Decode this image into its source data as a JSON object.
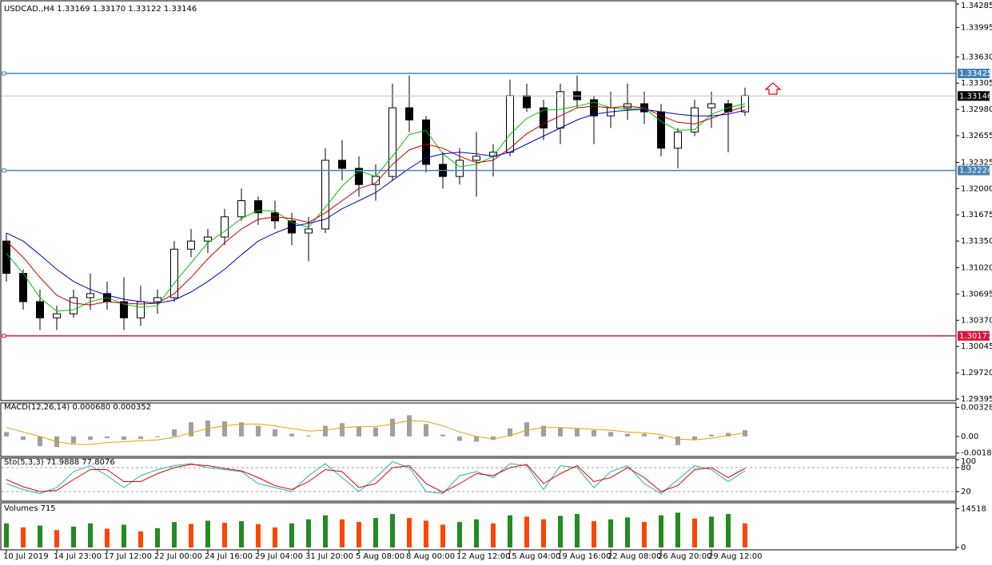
{
  "chart_data": [
    {
      "type": "candlestick",
      "title": "USDCAD.,H4  1.33169 1.33170 1.33122 1.33146",
      "categories": [
        "10 Jul 2019",
        null,
        null,
        "14 Jul 23:00",
        null,
        null,
        "17 Jul 12:00",
        null,
        null,
        "22 Jul 00:00",
        null,
        null,
        "24 Jul 16:00",
        null,
        null,
        "29 Jul 04:00",
        null,
        null,
        "31 Jul 20:00",
        null,
        null,
        "5 Aug 08:00",
        null,
        null,
        "8 Aug 00:00",
        null,
        null,
        "12 Aug 12:00",
        null,
        null,
        "15 Aug 04:00",
        null,
        null,
        "19 Aug 16:00",
        null,
        null,
        "22 Aug 08:00",
        null,
        null,
        "26 Aug 20:00",
        null,
        null,
        "29 Aug 12:00",
        null,
        null
      ],
      "open": [
        1.3135,
        1.3095,
        1.306,
        1.304,
        1.3045,
        1.3065,
        1.307,
        1.306,
        1.304,
        1.306,
        1.3065,
        1.3125,
        1.3135,
        1.314,
        1.3165,
        1.3185,
        1.317,
        1.316,
        1.3145,
        1.315,
        1.3235,
        1.3225,
        1.3205,
        1.3215,
        1.33,
        1.3285,
        1.323,
        1.3215,
        1.3235,
        1.324,
        1.3245,
        1.3315,
        1.33,
        1.3275,
        1.332,
        1.331,
        1.329,
        1.33,
        1.3305,
        1.3295,
        1.325,
        1.327,
        1.33,
        1.3305,
        1.3295
      ],
      "high": [
        1.3145,
        1.31,
        1.3075,
        1.3055,
        1.3075,
        1.3095,
        1.3085,
        1.309,
        1.308,
        1.3075,
        1.3135,
        1.315,
        1.315,
        1.3175,
        1.32,
        1.319,
        1.3185,
        1.317,
        1.3165,
        1.325,
        1.326,
        1.324,
        1.323,
        1.333,
        1.334,
        1.329,
        1.3245,
        1.325,
        1.327,
        1.3255,
        1.3335,
        1.333,
        1.331,
        1.333,
        1.334,
        1.3315,
        1.332,
        1.333,
        1.332,
        1.3305,
        1.3275,
        1.331,
        1.332,
        1.331,
        1.3325
      ],
      "low": [
        1.3085,
        1.305,
        1.3025,
        1.3025,
        1.304,
        1.305,
        1.305,
        1.3025,
        1.303,
        1.3045,
        1.306,
        1.3115,
        1.312,
        1.313,
        1.316,
        1.3155,
        1.315,
        1.313,
        1.311,
        1.3145,
        1.321,
        1.319,
        1.3185,
        1.321,
        1.327,
        1.322,
        1.32,
        1.3205,
        1.319,
        1.3215,
        1.324,
        1.3295,
        1.326,
        1.3255,
        1.33,
        1.3255,
        1.3275,
        1.3285,
        1.328,
        1.324,
        1.3225,
        1.3265,
        1.3275,
        1.3245,
        1.329
      ],
      "close": [
        1.3095,
        1.306,
        1.304,
        1.3045,
        1.3065,
        1.307,
        1.306,
        1.304,
        1.306,
        1.3065,
        1.3125,
        1.3135,
        1.314,
        1.3165,
        1.3185,
        1.317,
        1.316,
        1.3145,
        1.315,
        1.3235,
        1.3225,
        1.3205,
        1.3215,
        1.33,
        1.3285,
        1.323,
        1.3215,
        1.3235,
        1.324,
        1.3245,
        1.3315,
        1.33,
        1.3275,
        1.332,
        1.331,
        1.329,
        1.33,
        1.3305,
        1.3295,
        1.325,
        1.327,
        1.33,
        1.3305,
        1.3295,
        1.3315
      ],
      "up_color": "#ffffff",
      "down_color": "#000000",
      "lines": [
        {
          "color": "#00c000",
          "values": [
            1.312,
            1.3095,
            1.3065,
            1.3048,
            1.305,
            1.306,
            1.3065,
            1.3057,
            1.3053,
            1.3055,
            1.3083,
            1.3108,
            1.3133,
            1.3147,
            1.3163,
            1.3173,
            1.3172,
            1.3158,
            1.3152,
            1.3177,
            1.3203,
            1.3222,
            1.3215,
            1.324,
            1.3267,
            1.3272,
            1.3243,
            1.3227,
            1.323,
            1.324,
            1.3267,
            1.3287,
            1.3297,
            1.3298,
            1.3302,
            1.3307,
            1.33,
            1.3298,
            1.33,
            1.3283,
            1.3272,
            1.3273,
            1.3292,
            1.33,
            1.3305
          ]
        },
        {
          "color": "#c00000",
          "values": [
            1.3135,
            1.3115,
            1.309,
            1.3068,
            1.3058,
            1.3056,
            1.306,
            1.3058,
            1.3057,
            1.3058,
            1.307,
            1.309,
            1.3113,
            1.3133,
            1.315,
            1.3162,
            1.3165,
            1.3163,
            1.3158,
            1.317,
            1.3185,
            1.32,
            1.3207,
            1.323,
            1.3248,
            1.3255,
            1.325,
            1.324,
            1.3232,
            1.3235,
            1.325,
            1.3268,
            1.328,
            1.329,
            1.33,
            1.3302,
            1.33,
            1.3302,
            1.33,
            1.329,
            1.3282,
            1.328,
            1.3287,
            1.3295,
            1.3302
          ]
        },
        {
          "color": "#0000c0",
          "values": [
            1.3145,
            1.3135,
            1.3118,
            1.31,
            1.3085,
            1.3075,
            1.3068,
            1.3063,
            1.306,
            1.3058,
            1.3062,
            1.3072,
            1.3085,
            1.31,
            1.3118,
            1.3135,
            1.3145,
            1.3153,
            1.3157,
            1.3162,
            1.3175,
            1.3185,
            1.3195,
            1.321,
            1.3225,
            1.3238,
            1.3243,
            1.3245,
            1.3243,
            1.324,
            1.3245,
            1.3255,
            1.3265,
            1.3275,
            1.3285,
            1.3292,
            1.3295,
            1.3297,
            1.3298,
            1.3295,
            1.3292,
            1.329,
            1.329,
            1.3292,
            1.3297
          ]
        }
      ],
      "levels": [
        {
          "value": 1.33425,
          "color": "#4682b4"
        },
        {
          "value": 1.32224,
          "color": "#4682b4"
        },
        {
          "value": 1.30177,
          "color": "#dc143c"
        }
      ],
      "current_price": {
        "value": 1.33146,
        "color": "#000000"
      },
      "ylim": [
        1.29395,
        1.34285
      ],
      "yticks": [
        {
          "value": 1.34285,
          "label": "1.34285"
        },
        {
          "value": 1.33995,
          "label": "1.33995"
        },
        {
          "value": 1.3363,
          "label": "1.33630"
        },
        {
          "value": 1.33305,
          "label": "1.33305"
        },
        {
          "value": 1.3298,
          "label": "1.32980"
        },
        {
          "value": 1.32655,
          "label": "1.32655"
        },
        {
          "value": 1.32325,
          "label": "1.32325"
        },
        {
          "value": 1.32,
          "label": "1.32000"
        },
        {
          "value": 1.31675,
          "label": "1.31675"
        },
        {
          "value": 1.3135,
          "label": "1.31350"
        },
        {
          "value": 1.3102,
          "label": "1.31020"
        },
        {
          "value": 1.30695,
          "label": "1.30695"
        },
        {
          "value": 1.3037,
          "label": "1.30370"
        },
        {
          "value": 1.30045,
          "label": "1.30045"
        },
        {
          "value": 1.2972,
          "label": "1.29720"
        },
        {
          "value": 1.29395,
          "label": "1.29395"
        }
      ],
      "grid": false
    },
    {
      "type": "bar",
      "title": "MACD(12,26,14) 0.000680 0.000352",
      "color": "#a0a0a0",
      "values": [
        0.0005,
        -0.0004,
        -0.0011,
        -0.0012,
        -0.0008,
        -0.0004,
        -0.0002,
        -0.0004,
        -0.0003,
        -0.0001,
        0.0008,
        0.0016,
        0.0018,
        0.0017,
        0.0016,
        0.0012,
        0.0008,
        0.0003,
        0.0001,
        0.0012,
        0.0015,
        0.0011,
        0.001,
        0.002,
        0.0024,
        0.0014,
        0.0002,
        -0.0005,
        -0.0006,
        -0.0004,
        0.0009,
        0.0016,
        0.0012,
        0.001,
        0.0009,
        0.0007,
        0.0005,
        0.0003,
        0.0003,
        -0.0003,
        -0.001,
        -0.0004,
        0.0002,
        0.0004,
        0.0007
      ],
      "lines": [
        {
          "color": "#e8a000",
          "values": [
            0.001,
            0.0005,
            0.0,
            -0.0006,
            -0.0009,
            -0.0009,
            -0.0007,
            -0.0006,
            -0.0005,
            -0.0004,
            -0.0001,
            0.0004,
            0.0009,
            0.0012,
            0.0014,
            0.0014,
            0.0012,
            0.0009,
            0.0006,
            0.0007,
            0.001,
            0.0011,
            0.0011,
            0.0014,
            0.0018,
            0.0017,
            0.0012,
            0.0005,
            0.0,
            -0.0003,
            0.0001,
            0.0007,
            0.001,
            0.001,
            0.0009,
            0.0008,
            0.0007,
            0.0005,
            0.0004,
            0.0002,
            -0.0003,
            -0.0004,
            -0.0002,
            0.0001,
            0.0004
          ]
        }
      ],
      "ylim": [
        -0.002,
        0.0036
      ],
      "yticks": [
        0.003288,
        {
          "value": 0,
          "label": "0.00"
        },
        -0.001886
      ],
      "grid": false
    },
    {
      "type": "line",
      "title": "Sto(5,3,3) 71.9888 77.8076",
      "lines": [
        {
          "color": "#20b2aa",
          "values": [
            40,
            25,
            15,
            30,
            70,
            85,
            60,
            30,
            60,
            75,
            85,
            90,
            80,
            75,
            70,
            40,
            30,
            20,
            60,
            90,
            55,
            20,
            55,
            95,
            80,
            20,
            15,
            60,
            70,
            55,
            90,
            85,
            25,
            85,
            80,
            30,
            70,
            85,
            40,
            15,
            50,
            85,
            75,
            45,
            72
          ]
        },
        {
          "color": "#e00000",
          "values": [
            50,
            32,
            20,
            23,
            50,
            75,
            75,
            45,
            45,
            65,
            80,
            88,
            85,
            78,
            72,
            55,
            35,
            25,
            45,
            75,
            70,
            30,
            40,
            80,
            85,
            40,
            18,
            40,
            65,
            60,
            80,
            88,
            40,
            65,
            85,
            45,
            55,
            80,
            55,
            20,
            35,
            75,
            80,
            55,
            78
          ]
        }
      ],
      "ylim": [
        0,
        100
      ],
      "yticks": [
        100,
        80,
        20
      ],
      "grid": true
    },
    {
      "type": "bar",
      "title": "Volumes 715",
      "up_color": "#228b22",
      "down_color": "#ff4500",
      "values": [
        9000,
        7500,
        8200,
        6500,
        7800,
        9000,
        7000,
        8500,
        6000,
        7200,
        9500,
        8800,
        10000,
        9200,
        9800,
        8700,
        7500,
        9000,
        10500,
        12000,
        10500,
        9500,
        11000,
        12500,
        11000,
        10000,
        8500,
        9500,
        10500,
        9000,
        12000,
        11500,
        10500,
        11800,
        12500,
        9800,
        10500,
        11200,
        9500,
        12000,
        13000,
        10800,
        11500,
        12500,
        9000
      ],
      "ylim": [
        0,
        15500
      ],
      "yticks": [
        14518,
        0
      ],
      "grid": false
    }
  ]
}
